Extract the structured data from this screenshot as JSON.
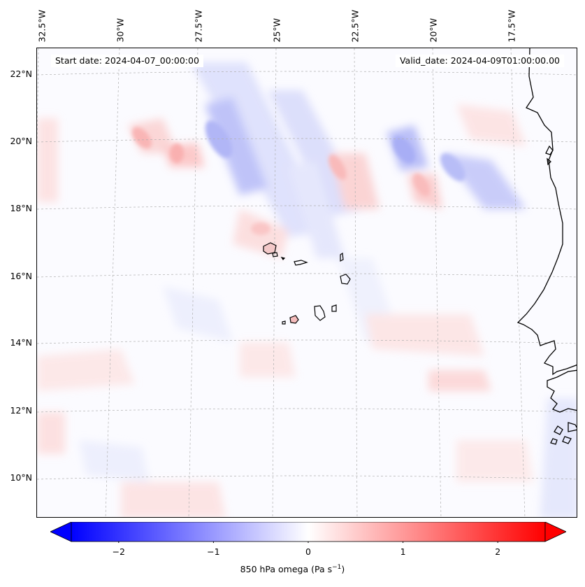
{
  "map": {
    "start_date": "Start date: 2024-04-07_00:00:00",
    "valid_date": "Valid_date: 2024-04-09T01:00:00.00",
    "lon_labels": [
      "32.5°W",
      "30°W",
      "27.5°W",
      "25°W",
      "22.5°W",
      "20°W",
      "17.5°W"
    ],
    "lat_labels": [
      "22°N",
      "20°N",
      "18°N",
      "16°N",
      "14°N",
      "12°N",
      "10°N"
    ],
    "field": "850 hPa omega",
    "units_base": "Pa s",
    "units_exp": "−1"
  },
  "colorbar": {
    "min": -2.5,
    "max": 2.5,
    "ticks": [
      "−2",
      "−1",
      "0",
      "1",
      "2"
    ],
    "tick_values": [
      -2,
      -1,
      0,
      1,
      2
    ],
    "colormap": "bwr",
    "low_color": "#0000ff",
    "mid_color": "#ffffff",
    "high_color": "#ff0000"
  },
  "colors": {
    "coastline": "#000000",
    "gridline": "#b0b0b0"
  }
}
